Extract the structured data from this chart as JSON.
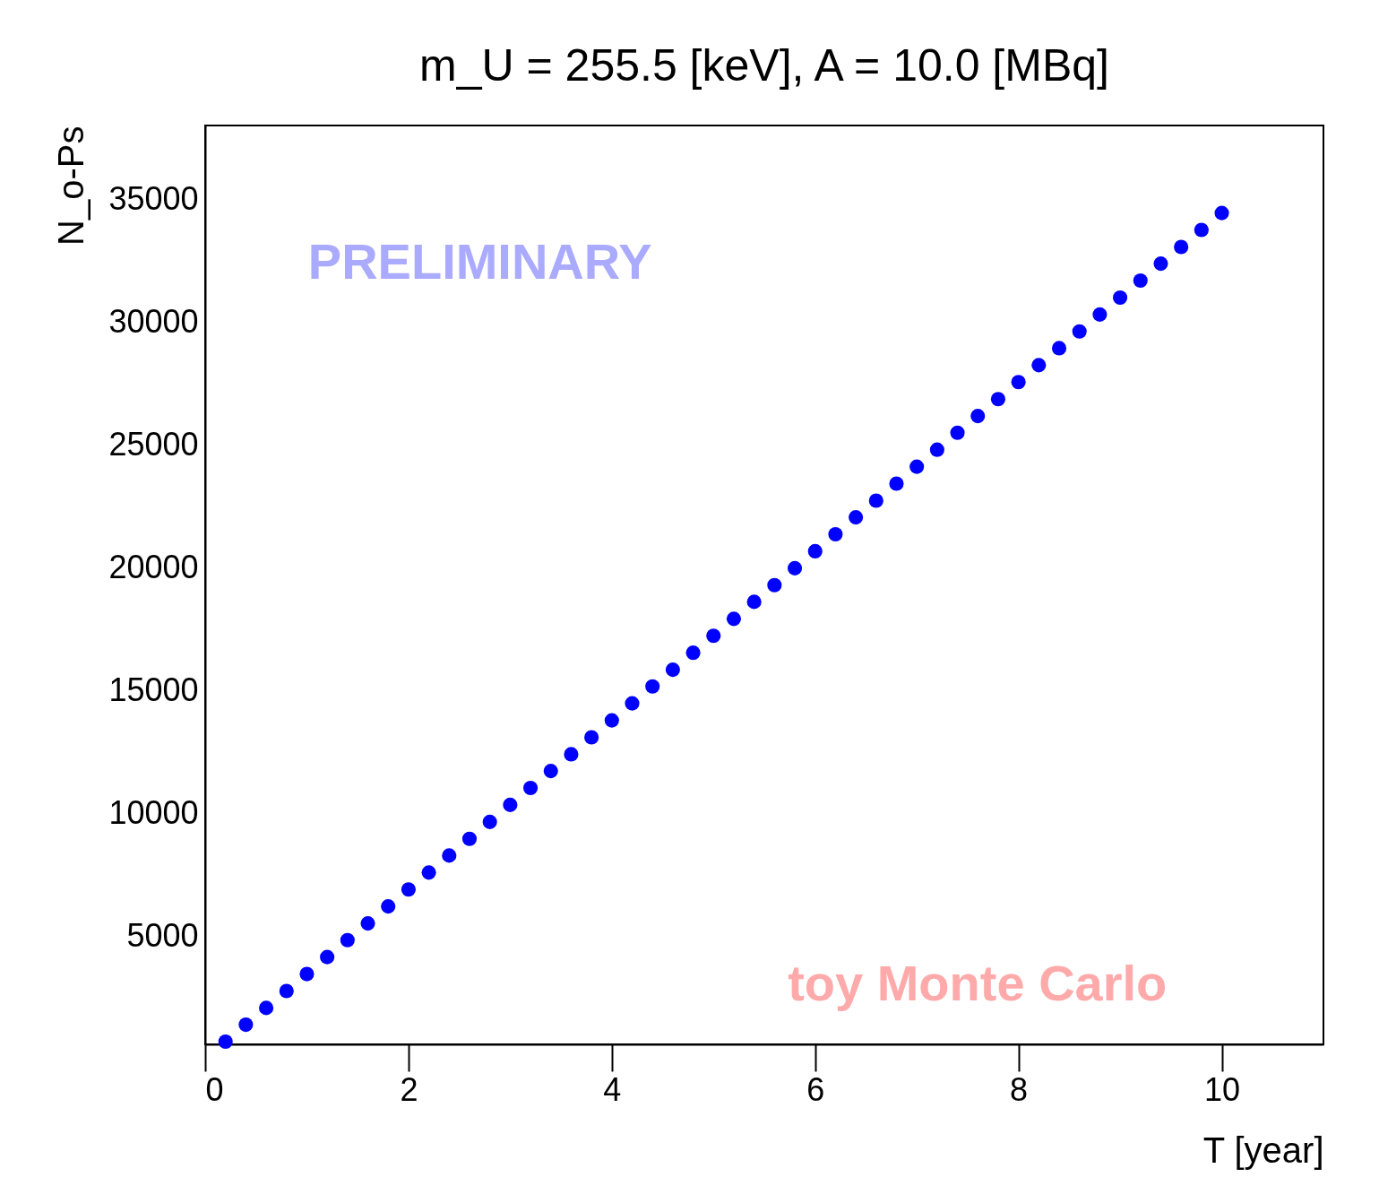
{
  "chart_data": {
    "type": "scatter",
    "title": "m_U = 255.5 [keV], A = 10.0 [MBq]",
    "xlabel": "T [year]",
    "ylabel": "N_o-Ps",
    "annotations": [
      "PRELIMINARY",
      "toy Monte Carlo"
    ],
    "x": [
      0.2,
      0.4,
      0.6,
      0.8,
      1.0,
      1.2,
      1.4,
      1.6,
      1.8,
      2.0,
      2.2,
      2.4,
      2.6,
      2.8,
      3.0,
      3.2,
      3.4,
      3.6,
      3.8,
      4.0,
      4.2,
      4.4,
      4.6,
      4.8,
      5.0,
      5.2,
      5.4,
      5.6,
      5.8,
      6.0,
      6.2,
      6.4,
      6.6,
      6.8,
      7.0,
      7.2,
      7.4,
      7.6,
      7.8,
      8.0,
      8.2,
      8.4,
      8.6,
      8.8,
      9.0,
      9.2,
      9.4,
      9.6,
      9.8,
      10.0
    ],
    "series": [
      {
        "color": "#0000ff",
        "values": [
          730,
          1420,
          2100,
          2790,
          3480,
          4170,
          4860,
          5540,
          6230,
          6920,
          7610,
          8300,
          8980,
          9670,
          10360,
          11050,
          11740,
          12420,
          13110,
          13800,
          14490,
          15180,
          15860,
          16550,
          17240,
          17930,
          18620,
          19300,
          19990,
          20680,
          21370,
          22060,
          22740,
          23430,
          24120,
          24810,
          25500,
          26180,
          26870,
          27560,
          28250,
          28940,
          29620,
          30310,
          31000,
          31690,
          32380,
          33060,
          33750,
          34440
        ]
      }
    ],
    "xlim": [
      0,
      11
    ],
    "ylim": [
      620,
      38000
    ],
    "xticks": [
      0,
      2,
      4,
      6,
      8,
      10
    ],
    "yticks": [
      5000,
      10000,
      15000,
      20000,
      25000,
      30000,
      35000
    ],
    "marker": "circle",
    "grid": false,
    "legend": false
  }
}
